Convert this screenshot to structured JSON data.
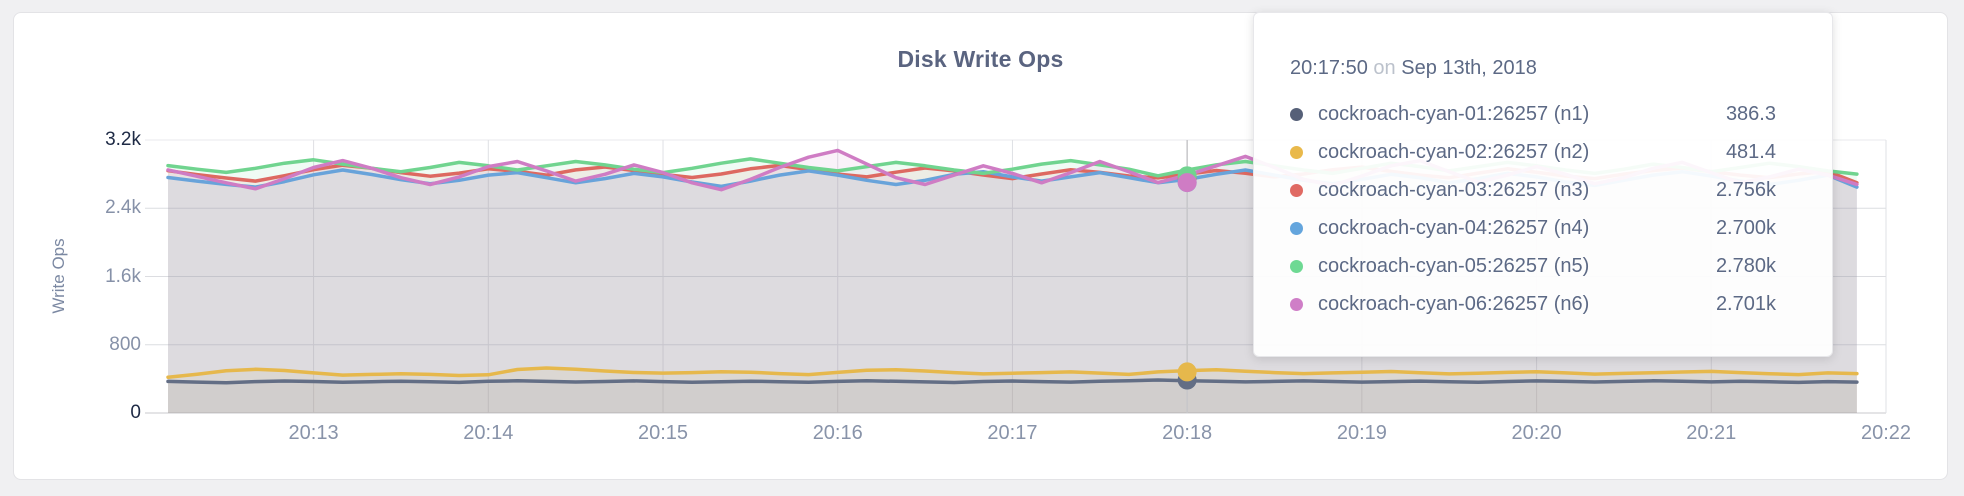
{
  "panel": {
    "title": "Disk Write Ops"
  },
  "colors": {
    "background": "#f0f0f2",
    "panel_bg": "#ffffff",
    "panel_border": "#e3e3e6",
    "grid": "#dcdde1",
    "grid_vertical": "#dfe0e4",
    "grid_top": "#e9eaec",
    "axis_zero_line": "#c9cace",
    "hover_line": "#c7c7ca",
    "title_text": "#5a6480",
    "axis_label_text": "#7b88a2",
    "tick_text": "#8893a9",
    "tick_text_minmax": "#1e2a45",
    "tooltip_text": "#5c6985",
    "tooltip_muted_text": "#bcc2cc"
  },
  "chart_data": {
    "type": "line",
    "title": "Disk Write Ops",
    "xlabel": "",
    "ylabel": "Write Ops",
    "ylim": [
      0,
      3200
    ],
    "grid": true,
    "legend_position": "tooltip-only",
    "area_fill_opacity": 0.1,
    "line_width": 3.5,
    "y_ticks": [
      {
        "label": "3.2k",
        "value": 3200
      },
      {
        "label": "2.4k",
        "value": 2400
      },
      {
        "label": "1.6k",
        "value": 1600
      },
      {
        "label": "800",
        "value": 800
      },
      {
        "label": "0",
        "value": 0
      }
    ],
    "x_axis": {
      "base_time": "20:12:00",
      "first_point_offset_s": 10,
      "point_interval_s": 10,
      "point_count": 59,
      "domain_end_offset_s": 600,
      "first_point_time": "20:12:10",
      "last_point_time": "20:21:50",
      "ticks": [
        {
          "label": "20:13",
          "t": 60
        },
        {
          "label": "20:14",
          "t": 120
        },
        {
          "label": "20:15",
          "t": 180
        },
        {
          "label": "20:16",
          "t": 240
        },
        {
          "label": "20:17",
          "t": 300
        },
        {
          "label": "20:18",
          "t": 360
        },
        {
          "label": "20:19",
          "t": 420
        },
        {
          "label": "20:20",
          "t": 480
        },
        {
          "label": "20:21",
          "t": 540
        },
        {
          "label": "20:22",
          "t": 600
        }
      ]
    },
    "hover": {
      "index": 34,
      "time": "20:17:50",
      "guideline_t": 360,
      "dot_radius": 9.5
    },
    "series": [
      {
        "name": "cockroach-cyan-01:26257 (n1)",
        "color": "#636e85",
        "values": [
          370,
          362,
          355,
          368,
          375,
          369,
          361,
          367,
          373,
          366,
          359,
          371,
          378,
          370,
          363,
          369,
          376,
          368,
          360,
          366,
          373,
          367,
          361,
          370,
          377,
          371,
          364,
          358,
          369,
          375,
          368,
          362,
          371,
          377,
          386.3,
          379,
          371,
          364,
          370,
          376,
          369,
          362,
          368,
          374,
          367,
          360,
          369,
          376,
          370,
          363,
          370,
          377,
          371,
          365,
          372,
          366,
          359,
          368,
          362
        ]
      },
      {
        "name": "cockroach-cyan-02:26257 (n2)",
        "color": "#e6b84c",
        "values": [
          420,
          455,
          495,
          512,
          498,
          470,
          444,
          452,
          460,
          452,
          440,
          448,
          510,
          527,
          512,
          492,
          475,
          468,
          474,
          484,
          478,
          462,
          450,
          476,
          500,
          508,
          492,
          473,
          458,
          466,
          474,
          482,
          468,
          452,
          481.4,
          497,
          506,
          490,
          474,
          462,
          470,
          478,
          486,
          472,
          458,
          466,
          476,
          484,
          470,
          456,
          464,
          472,
          480,
          488,
          474,
          460,
          450,
          470,
          462
        ]
      },
      {
        "name": "cockroach-cyan-03:26257 (n3)",
        "color": "#dd6961",
        "values": [
          2840,
          2795,
          2755,
          2718,
          2782,
          2852,
          2905,
          2868,
          2818,
          2776,
          2812,
          2862,
          2832,
          2788,
          2850,
          2884,
          2842,
          2798,
          2760,
          2802,
          2862,
          2902,
          2852,
          2800,
          2768,
          2822,
          2872,
          2838,
          2790,
          2748,
          2802,
          2852,
          2820,
          2778,
          2756,
          2800,
          2842,
          2810,
          2768,
          2802,
          2852,
          2882,
          2832,
          2788,
          2758,
          2812,
          2862,
          2822,
          2778,
          2748,
          2800,
          2842,
          2872,
          2830,
          2788,
          2758,
          2802,
          2832,
          2700
        ]
      },
      {
        "name": "cockroach-cyan-04:26257 (n4)",
        "color": "#68a3da",
        "values": [
          2760,
          2718,
          2680,
          2648,
          2712,
          2792,
          2848,
          2796,
          2736,
          2688,
          2728,
          2788,
          2818,
          2758,
          2698,
          2748,
          2808,
          2768,
          2708,
          2656,
          2718,
          2788,
          2838,
          2788,
          2728,
          2678,
          2728,
          2798,
          2828,
          2768,
          2718,
          2768,
          2818,
          2758,
          2700,
          2738,
          2798,
          2848,
          2788,
          2728,
          2688,
          2738,
          2798,
          2758,
          2698,
          2748,
          2808,
          2768,
          2708,
          2668,
          2728,
          2788,
          2828,
          2778,
          2718,
          2678,
          2728,
          2788,
          2648
        ]
      },
      {
        "name": "cockroach-cyan-05:26257 (n5)",
        "color": "#70d48f",
        "values": [
          2900,
          2858,
          2820,
          2868,
          2928,
          2968,
          2918,
          2868,
          2828,
          2878,
          2938,
          2898,
          2848,
          2898,
          2948,
          2908,
          2858,
          2818,
          2868,
          2928,
          2978,
          2928,
          2878,
          2838,
          2888,
          2938,
          2898,
          2848,
          2808,
          2858,
          2918,
          2958,
          2908,
          2858,
          2780,
          2848,
          2908,
          2948,
          2898,
          2848,
          2808,
          2868,
          2928,
          2888,
          2838,
          2888,
          2938,
          2898,
          2848,
          2808,
          2858,
          2918,
          2878,
          2828,
          2878,
          2928,
          2888,
          2838,
          2800
        ]
      },
      {
        "name": "cockroach-cyan-06:26257 (n6)",
        "color": "#cf7cc4",
        "values": [
          2850,
          2775,
          2698,
          2628,
          2748,
          2878,
          2958,
          2868,
          2758,
          2678,
          2768,
          2888,
          2948,
          2838,
          2718,
          2798,
          2908,
          2818,
          2698,
          2618,
          2738,
          2878,
          2998,
          3078,
          2918,
          2758,
          2678,
          2788,
          2898,
          2808,
          2698,
          2818,
          2948,
          2828,
          2701,
          2788,
          2898,
          3008,
          2878,
          2738,
          2668,
          2778,
          2898,
          2958,
          2828,
          2708,
          2788,
          2888,
          2798,
          2688,
          2758,
          2868,
          2938,
          2818,
          2698,
          2768,
          2858,
          2788,
          2680
        ]
      }
    ]
  },
  "tooltip": {
    "time": "20:17:50",
    "conjunction": "on",
    "date": "Sep 13th, 2018",
    "rows": [
      {
        "label": "cockroach-cyan-01:26257 (n1)",
        "value": "386.3",
        "color": "#566078"
      },
      {
        "label": "cockroach-cyan-02:26257 (n2)",
        "value": "481.4",
        "color": "#e9b94b"
      },
      {
        "label": "cockroach-cyan-03:26257 (n3)",
        "value": "2.756k",
        "color": "#e06a63"
      },
      {
        "label": "cockroach-cyan-04:26257 (n4)",
        "value": "2.700k",
        "color": "#64a5dd"
      },
      {
        "label": "cockroach-cyan-05:26257 (n5)",
        "value": "2.780k",
        "color": "#6ed993"
      },
      {
        "label": "cockroach-cyan-06:26257 (n6)",
        "value": "2.701k",
        "color": "#cf7ec7"
      }
    ]
  }
}
